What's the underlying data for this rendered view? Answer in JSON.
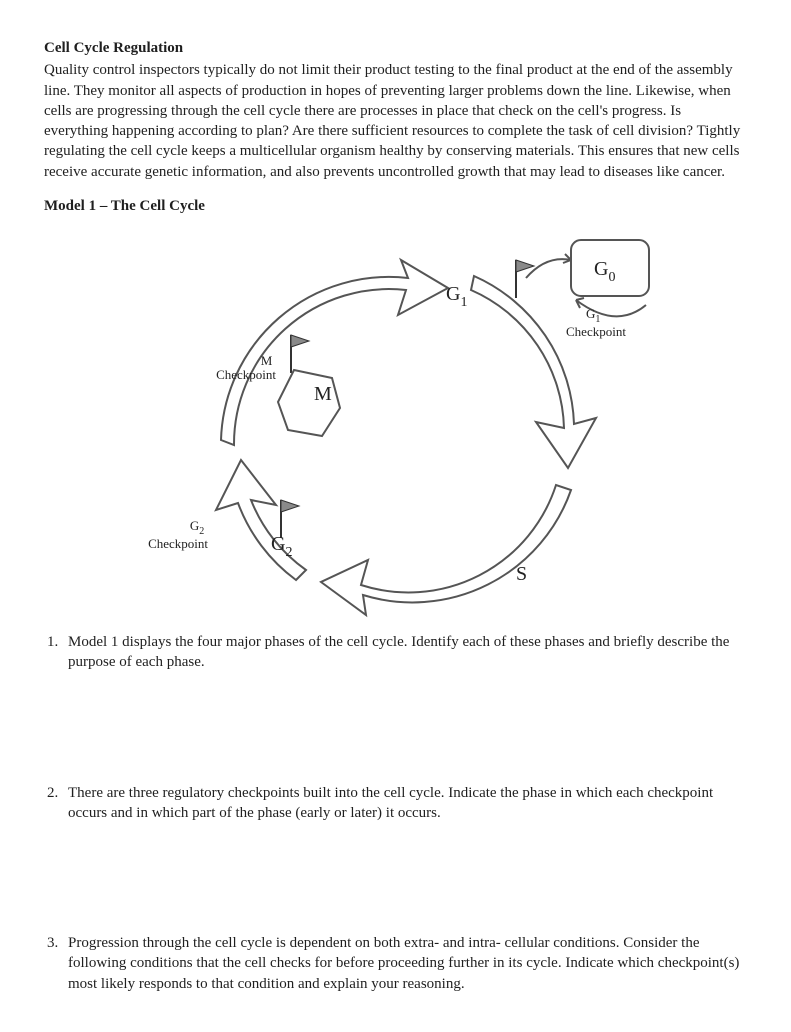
{
  "heading": "Cell Cycle Regulation",
  "intro_paragraph": "Quality control inspectors typically do not limit their product testing to the final product at the end of the assembly line. They monitor all aspects of production in hopes of preventing larger problems down the line. Likewise, when cells are progressing through the cell cycle there are processes in place that check on the cell's progress. Is everything happening according to plan? Are there sufficient resources to complete the task of cell division? Tightly regulating the cell cycle keeps a multicellular organism healthy by conserving materials. This ensures that new cells receive accurate genetic information, and also prevents uncontrolled growth that may lead to diseases like cancer.",
  "model_title": "Model 1 – The Cell Cycle",
  "diagram": {
    "type": "flowchart",
    "stroke": "#555555",
    "fill": "#ffffff",
    "flag_fill": "#8a8a8a",
    "text_color": "#222222",
    "phase_fontsize": 20,
    "sub_fontsize": 14,
    "label_fontsize": 13,
    "phases": {
      "G1": {
        "label": "G",
        "sub": "1"
      },
      "S": {
        "label": "S"
      },
      "G2": {
        "label": "G",
        "sub": "2"
      },
      "M": {
        "label": "M"
      },
      "G0": {
        "label": "G",
        "sub": "0"
      }
    },
    "checkpoints": {
      "G1": {
        "line1": "G",
        "sub": "1",
        "line2": "Checkpoint"
      },
      "G2": {
        "line1": "G",
        "sub": "2",
        "line2": "Checkpoint"
      },
      "M": {
        "line1": "M",
        "line2": "Checkpoint"
      }
    }
  },
  "questions": [
    "Model 1 displays the four major phases of the cell cycle.  Identify each of these phases and briefly describe the purpose of each phase.",
    "There are three regulatory checkpoints built into the cell cycle.  Indicate the phase in which each checkpoint occurs and in which part of the phase (early or later) it occurs.",
    "Progression through the cell cycle is dependent on both extra- and intra- cellular conditions.  Consider the following conditions that the cell checks for before proceeding further in its cycle.  Indicate which checkpoint(s) most likely responds to that condition and explain your reasoning."
  ]
}
